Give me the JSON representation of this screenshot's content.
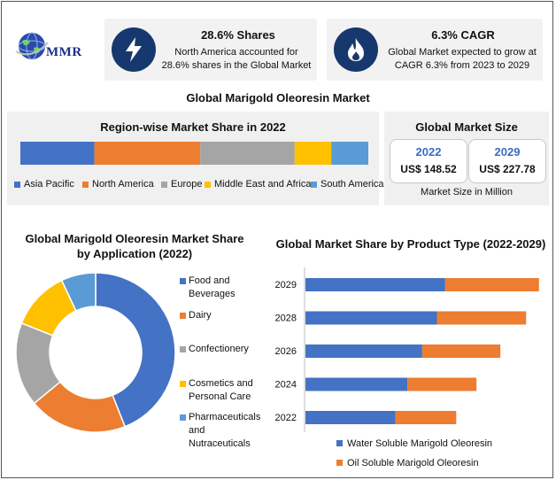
{
  "logo": {
    "text": "MMR"
  },
  "stats": [
    {
      "icon": "lightning-icon",
      "title": "28.6% Shares",
      "text_line1": "North America accounted for",
      "text_line2": "28.6% shares in the Global Market"
    },
    {
      "icon": "flame-icon",
      "title": "6.3% CAGR",
      "text_line1": "Global Market expected to grow at",
      "text_line2": "CAGR 6.3% from 2023 to 2029"
    }
  ],
  "main_title": "Global Marigold Oleoresin Market",
  "market_size": {
    "title": "Global Market Size",
    "cards": [
      {
        "year": "2022",
        "value": "US$ 148.52"
      },
      {
        "year": "2029",
        "value": "US$ 227.78"
      }
    ],
    "note": "Market Size in Million"
  },
  "chart_data": [
    {
      "type": "bar",
      "orientation": "horizontal-stacked-100",
      "title": "Region-wise Market Share in 2022",
      "series": [
        {
          "name": "Asia Pacific",
          "values": [
            20.0
          ],
          "color": "#4472c4"
        },
        {
          "name": "North America",
          "values": [
            28.6
          ],
          "color": "#ed7d31"
        },
        {
          "name": "Europe",
          "values": [
            25.5
          ],
          "color": "#a5a5a5"
        },
        {
          "name": "Middle East and Africa",
          "values": [
            9.9
          ],
          "color": "#ffc000"
        },
        {
          "name": "South America",
          "values": [
            10.0
          ],
          "color": "#5b9bd5"
        }
      ],
      "legend": "bottom"
    },
    {
      "type": "pie",
      "donut": true,
      "title_line1": "Global Marigold Oleoresin Market Share",
      "title_line2": "by Application (2022)",
      "labels": [
        "Food and Beverages",
        "Dairy",
        "Confectionery",
        "Cosmetics and Personal Care",
        "Pharmaceuticals and Nutraceuticals"
      ],
      "legend_lines": [
        [
          "Food and",
          "Beverages"
        ],
        [
          "Dairy"
        ],
        [
          "Confectionery"
        ],
        [
          "Cosmetics and",
          "Personal Care"
        ],
        [
          "Pharmaceuticals",
          "and",
          "Nutraceuticals"
        ]
      ],
      "values": [
        44,
        20,
        17,
        12,
        7
      ],
      "colors": [
        "#4472c4",
        "#ed7d31",
        "#a5a5a5",
        "#ffc000",
        "#5b9bd5"
      ],
      "legend": "right"
    },
    {
      "type": "bar",
      "orientation": "horizontal-stacked",
      "title": "Global Market Share by Product Type (2022-2029)",
      "categories": [
        "2029",
        "2028",
        "2026",
        "2024",
        "2022"
      ],
      "series": [
        {
          "name": "Water Soluble Marigold Oleoresin",
          "values": [
            152,
            143,
            127,
            111,
            98
          ],
          "color": "#4472c4"
        },
        {
          "name": "Oil Soluble Marigold Oleoresin",
          "values": [
            102,
            97,
            85,
            75,
            66
          ],
          "color": "#ed7d31"
        }
      ],
      "xlim": [
        0,
        260
      ],
      "grid": false,
      "legend": "bottom"
    }
  ]
}
